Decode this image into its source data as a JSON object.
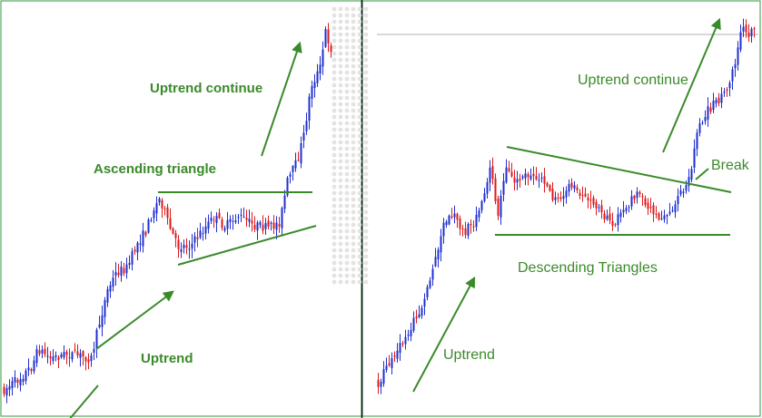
{
  "chart_data": [
    {
      "type": "candlestick",
      "pattern": "ascending triangle",
      "colors": {
        "up": "#1f2fd0",
        "down": "#e01818",
        "annotation": "#3a8a2a"
      },
      "annotations": {
        "top": "Uptrend continue",
        "middle": "Ascending triangle",
        "bottom": "Uptrend"
      },
      "lines": [
        "horizontal resistance",
        "rising support",
        "trend arrows x3"
      ]
    },
    {
      "type": "candlestick",
      "pattern": "descending triangle",
      "colors": {
        "up": "#1f2fd0",
        "down": "#e01818",
        "annotation": "#3a8a2a"
      },
      "annotations": {
        "top": "Uptrend continue",
        "break": "Break",
        "pattern_label": "Descending Triangles",
        "bottom": "Uptrend"
      },
      "lines": [
        "falling resistance",
        "horizontal support",
        "trend arrows x2",
        "break pointer"
      ]
    }
  ]
}
